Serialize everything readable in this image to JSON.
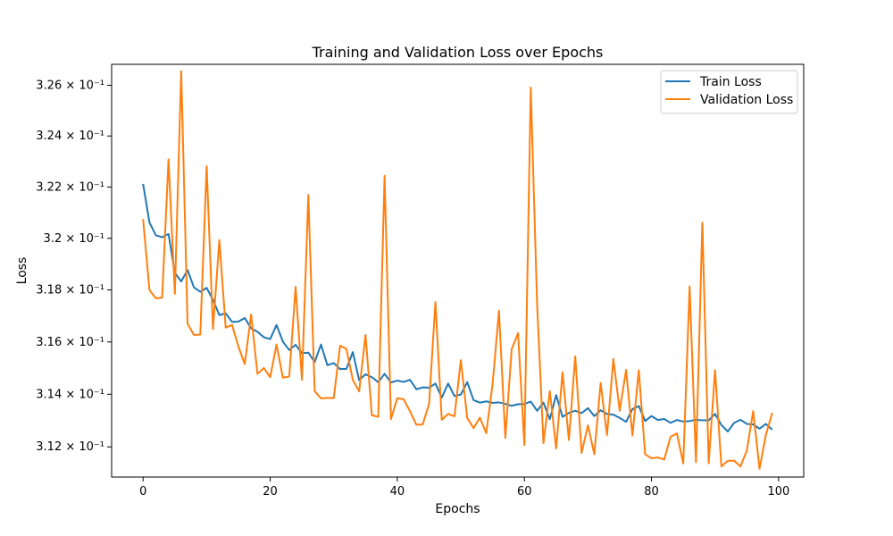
{
  "chart_data": {
    "type": "line",
    "title": "Training and Validation Loss over Epochs",
    "xlabel": "Epochs",
    "ylabel": "Loss",
    "xlim": [
      -4.95,
      103.95
    ],
    "ylim": [
      3.1086,
      3.2683
    ],
    "yscale": "log",
    "legend_position": "top-right",
    "grid": false,
    "x_ticks": [
      0,
      20,
      40,
      60,
      80,
      100
    ],
    "x_tick_labels": [
      "0",
      "20",
      "40",
      "60",
      "80",
      "100"
    ],
    "y_ticks": [
      0.312,
      0.314,
      0.316,
      0.318,
      0.32,
      0.322,
      0.324,
      0.326
    ],
    "y_tick_labels": [
      "3.12 × 10⁻¹",
      "3.14 × 10⁻¹",
      "3.16 × 10⁻¹",
      "3.18 × 10⁻¹",
      "3.2 × 10⁻¹",
      "3.22 × 10⁻¹",
      "3.24 × 10⁻¹",
      "3.26 × 10⁻¹"
    ],
    "y_value_scale": 0.1,
    "series": [
      {
        "name": "Train Loss",
        "color": "#1f77b4",
        "values": [
          3.2212,
          3.2062,
          3.2012,
          3.2004,
          3.2017,
          3.1866,
          3.1833,
          3.1877,
          3.181,
          3.1793,
          3.1808,
          3.1762,
          3.1703,
          3.171,
          3.1677,
          3.1678,
          3.1692,
          3.1652,
          3.1639,
          3.1618,
          3.1611,
          3.1665,
          3.1601,
          3.1569,
          3.1589,
          3.1557,
          3.1559,
          3.1523,
          3.159,
          3.1511,
          3.1519,
          3.1496,
          3.1497,
          3.1561,
          3.1454,
          3.1476,
          3.1465,
          3.1446,
          3.1478,
          3.1445,
          3.1452,
          3.1447,
          3.1455,
          3.1419,
          3.1426,
          3.1425,
          3.1441,
          3.1387,
          3.1441,
          3.1393,
          3.1399,
          3.1446,
          3.1378,
          3.1368,
          3.1373,
          3.1367,
          3.1369,
          3.1363,
          3.1356,
          3.1362,
          3.1363,
          3.1372,
          3.1337,
          3.1368,
          3.1305,
          3.1397,
          3.1314,
          3.1329,
          3.1337,
          3.1328,
          3.1347,
          3.1317,
          3.1339,
          3.1325,
          3.1322,
          3.131,
          3.1295,
          3.1343,
          3.1355,
          3.1298,
          3.1317,
          3.1302,
          3.1306,
          3.1291,
          3.1302,
          3.1296,
          3.1298,
          3.1303,
          3.1301,
          3.1301,
          3.1325,
          3.1283,
          3.1258,
          3.1291,
          3.1303,
          3.1287,
          3.1285,
          3.1269,
          3.1287,
          3.1265
        ]
      },
      {
        "name": "Validation Loss",
        "color": "#ff7f0e",
        "values": [
          3.2075,
          3.18,
          3.1768,
          3.177,
          3.2308,
          3.1785,
          3.2656,
          3.167,
          3.1627,
          3.1628,
          3.2281,
          3.1649,
          3.1993,
          3.1655,
          3.1665,
          3.1582,
          3.1515,
          3.1705,
          3.1478,
          3.15,
          3.1465,
          3.159,
          3.1463,
          3.1468,
          3.1812,
          3.1455,
          3.2169,
          3.1412,
          3.1384,
          3.1386,
          3.1385,
          3.1586,
          3.1573,
          3.1455,
          3.1411,
          3.1627,
          3.132,
          3.1314,
          3.2244,
          3.1305,
          3.1385,
          3.1381,
          3.1335,
          3.1284,
          3.1285,
          3.1363,
          3.1753,
          3.1303,
          3.1325,
          3.1316,
          3.153,
          3.131,
          3.1271,
          3.1311,
          3.1252,
          3.144,
          3.172,
          3.1234,
          3.1572,
          3.1634,
          3.1207,
          3.2591,
          3.1745,
          3.1214,
          3.1412,
          3.1194,
          3.1484,
          3.1226,
          3.1545,
          3.1177,
          3.1282,
          3.1172,
          3.1443,
          3.1245,
          3.1535,
          3.1337,
          3.1493,
          3.1243,
          3.1492,
          3.1172,
          3.1157,
          3.116,
          3.1152,
          3.1238,
          3.1251,
          3.1137,
          3.1814,
          3.1142,
          3.2061,
          3.1138,
          3.1492,
          3.1126,
          3.1147,
          3.1148,
          3.1126,
          3.1186,
          3.1336,
          3.1117,
          3.1246,
          3.1329
        ]
      }
    ]
  }
}
